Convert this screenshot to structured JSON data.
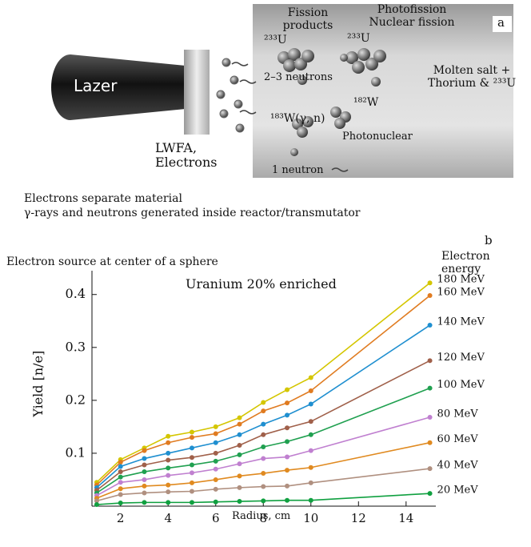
{
  "diagram": {
    "label": "a",
    "laser": "Lazer",
    "lwfa": "LWFA, Electrons",
    "fission_products": "Fission products",
    "photofission": "Photofission Nuclear fission",
    "u233_left": "²³³U",
    "u233_right": "²³³U",
    "neutrons_2_3": "2–3 neutrons",
    "w182": "¹⁸²W",
    "w183": "¹⁸³W(γ, n)",
    "photonuclear": "Photonuclear",
    "neutron_1": "1 neutron",
    "molten_salt": "Molten salt + Thorium & ²³³U",
    "caption": [
      "Electrons separate material",
      "γ-rays and neutrons generated inside reactor/transmutator"
    ]
  },
  "chart_data": {
    "type": "line",
    "panel_label": "b",
    "title": "Electron source at center of a sphere",
    "annotation": "Uranium 20% enriched",
    "legend_title": "Electron energy",
    "x_label": "Radius, cm",
    "y_label": "Yield [n/e]",
    "x": [
      1,
      2,
      3,
      4,
      5,
      6,
      7,
      8,
      9,
      10,
      15
    ],
    "xlim": [
      0.8,
      15.25
    ],
    "xticks": [
      2,
      4,
      6,
      8,
      10,
      12,
      14
    ],
    "ylim": [
      0,
      0.445
    ],
    "yticks": [
      0.1,
      0.2,
      0.3,
      0.4
    ],
    "series": [
      {
        "name": "180 MeV",
        "color": "#d4c600",
        "values": [
          0.045,
          0.088,
          0.11,
          0.132,
          0.14,
          0.15,
          0.167,
          0.196,
          0.22,
          0.243,
          0.422
        ]
      },
      {
        "name": "160 MeV",
        "color": "#e07b20",
        "values": [
          0.04,
          0.083,
          0.105,
          0.12,
          0.13,
          0.137,
          0.155,
          0.18,
          0.195,
          0.218,
          0.398
        ]
      },
      {
        "name": "140 MeV",
        "color": "#1f8fd0",
        "values": [
          0.035,
          0.075,
          0.09,
          0.1,
          0.11,
          0.12,
          0.135,
          0.155,
          0.172,
          0.193,
          0.342
        ]
      },
      {
        "name": "120 MeV",
        "color": "#a0604a",
        "values": [
          0.03,
          0.065,
          0.078,
          0.087,
          0.092,
          0.1,
          0.115,
          0.135,
          0.148,
          0.16,
          0.275
        ]
      },
      {
        "name": "100 MeV",
        "color": "#20a050",
        "values": [
          0.025,
          0.055,
          0.065,
          0.072,
          0.078,
          0.085,
          0.097,
          0.112,
          0.122,
          0.135,
          0.223
        ]
      },
      {
        "name": "80 MeV",
        "color": "#c080d0",
        "values": [
          0.02,
          0.045,
          0.05,
          0.058,
          0.063,
          0.07,
          0.08,
          0.09,
          0.093,
          0.105,
          0.168
        ]
      },
      {
        "name": "60 MeV",
        "color": "#e08a20",
        "values": [
          0.015,
          0.033,
          0.038,
          0.04,
          0.044,
          0.05,
          0.057,
          0.062,
          0.068,
          0.073,
          0.12
        ]
      },
      {
        "name": "40 MeV",
        "color": "#b09080",
        "values": [
          0.01,
          0.022,
          0.025,
          0.027,
          0.028,
          0.032,
          0.035,
          0.037,
          0.038,
          0.044,
          0.071
        ]
      },
      {
        "name": "20 MeV",
        "color": "#10a040",
        "values": [
          0.003,
          0.006,
          0.007,
          0.007,
          0.007,
          0.008,
          0.009,
          0.01,
          0.011,
          0.011,
          0.024
        ]
      }
    ]
  }
}
